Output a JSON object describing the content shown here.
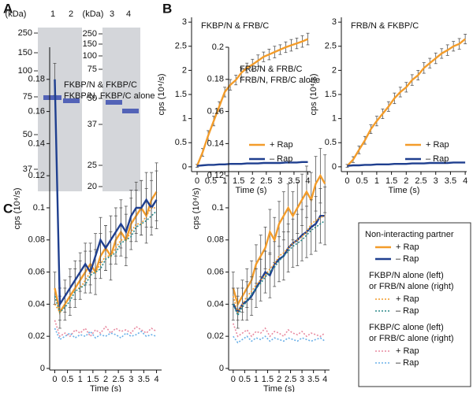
{
  "panel_labels": [
    "A",
    "B",
    "C"
  ],
  "gels": [
    {
      "unit": "(kDa)",
      "lanes": [
        "1",
        "2"
      ],
      "ticks": [
        "250",
        "150",
        "100",
        "75",
        "50",
        "37"
      ]
    },
    {
      "unit": "(kDa)",
      "lanes": [
        "3",
        "4"
      ],
      "ticks": [
        "250",
        "150",
        "100",
        "75",
        "50",
        "37",
        "25",
        "20"
      ]
    }
  ],
  "chart_data": [
    {
      "type": "line",
      "annotations": [
        "FKBP/N & FRB/C"
      ],
      "y_label": "cps (10⁴/s)",
      "x_label": "Time (s)",
      "legend": "lower right",
      "x": [
        0,
        0.2,
        0.4,
        0.6,
        0.8,
        1,
        1.2,
        1.4,
        1.6,
        1.8,
        2,
        2.2,
        2.4,
        2.6,
        2.8,
        3,
        3.2,
        3.4,
        3.6,
        3.8,
        4
      ],
      "xlim": [
        -0.2,
        4.1
      ],
      "xticks": [
        0,
        0.5,
        1,
        1.5,
        2,
        2.5,
        3,
        3.5,
        4
      ],
      "ylim": [
        -0.1,
        3.1
      ],
      "yticks": [
        0,
        0.5,
        1,
        1.5,
        2,
        2.5,
        3
      ],
      "series": [
        {
          "name": "+ Rap",
          "color": "#f39c2a",
          "style": "solid",
          "values": [
            0.02,
            0.3,
            0.65,
            0.95,
            1.25,
            1.55,
            1.7,
            1.8,
            1.95,
            2.05,
            2.12,
            2.2,
            2.28,
            2.33,
            2.38,
            2.43,
            2.48,
            2.52,
            2.56,
            2.6,
            2.65
          ],
          "errors": [
            0.03,
            0.08,
            0.1,
            0.1,
            0.1,
            0.1,
            0.11,
            0.1,
            0.11,
            0.1,
            0.11,
            0.12,
            0.1,
            0.11,
            0.12,
            0.1,
            0.11,
            0.12,
            0.11,
            0.12,
            0.12
          ]
        },
        {
          "name": "– Rap",
          "color": "#1f3f8f",
          "style": "solid",
          "values": [
            0.02,
            0.03,
            0.04,
            0.04,
            0.05,
            0.05,
            0.06,
            0.06,
            0.06,
            0.07,
            0.07,
            0.07,
            0.08,
            0.08,
            0.08,
            0.08,
            0.09,
            0.09,
            0.09,
            0.1,
            0.1
          ]
        }
      ]
    },
    {
      "type": "line",
      "annotations": [
        "FRB/N & FKBP/C"
      ],
      "y_label": "cps (10⁴/s)",
      "x_label": "Time (s)",
      "legend": "lower right",
      "x": [
        0,
        0.2,
        0.4,
        0.6,
        0.8,
        1,
        1.2,
        1.4,
        1.6,
        1.8,
        2,
        2.2,
        2.4,
        2.6,
        2.8,
        3,
        3.2,
        3.4,
        3.6,
        3.8,
        4
      ],
      "xlim": [
        -0.2,
        4.05
      ],
      "xticks": [
        0,
        0.5,
        1,
        1.5,
        2,
        2.5,
        3,
        3.5,
        4
      ],
      "ylim": [
        -0.1,
        3.1
      ],
      "yticks": [
        0,
        0.5,
        1,
        1.5,
        2,
        2.5,
        3
      ],
      "series": [
        {
          "name": "+ Rap",
          "color": "#f39c2a",
          "style": "solid",
          "values": [
            0.02,
            0.15,
            0.35,
            0.55,
            0.78,
            0.95,
            1.1,
            1.25,
            1.42,
            1.55,
            1.65,
            1.8,
            1.9,
            2.05,
            2.15,
            2.25,
            2.35,
            2.42,
            2.5,
            2.55,
            2.65
          ],
          "errors": [
            0.03,
            0.06,
            0.08,
            0.08,
            0.09,
            0.1,
            0.1,
            0.1,
            0.11,
            0.1,
            0.1,
            0.11,
            0.1,
            0.11,
            0.1,
            0.11,
            0.1,
            0.11,
            0.1,
            0.11,
            0.1
          ]
        },
        {
          "name": "– Rap",
          "color": "#1f3f8f",
          "style": "solid",
          "values": [
            0.02,
            0.03,
            0.03,
            0.04,
            0.04,
            0.05,
            0.05,
            0.05,
            0.06,
            0.06,
            0.06,
            0.07,
            0.07,
            0.07,
            0.08,
            0.08,
            0.08,
            0.08,
            0.09,
            0.09,
            0.09
          ]
        }
      ]
    },
    {
      "type": "line",
      "annotations": [
        "FKBP/N & FKBP/C",
        "FKBP/N, FKBP/C alone"
      ],
      "y_label": "cps (10⁴/s)",
      "x_label": "Time (s)",
      "legend": "outside right",
      "legend_groups": [
        [
          "Non-interacting partner"
        ],
        [
          "FKBP/N alone  (left)",
          "or FRB/N alone (right)"
        ],
        [
          "FKBP/C alone (left)",
          "or FRB/C alone (right)"
        ]
      ],
      "x": [
        0,
        0.2,
        0.4,
        0.6,
        0.8,
        1,
        1.2,
        1.4,
        1.6,
        1.8,
        2,
        2.2,
        2.4,
        2.6,
        2.8,
        3,
        3.2,
        3.4,
        3.6,
        3.8,
        4
      ],
      "xlim": [
        -0.2,
        4.2
      ],
      "xticks": [
        0,
        0.5,
        1,
        1.5,
        2,
        2.5,
        3,
        3.5,
        4
      ],
      "ylim": [
        -0.001,
        0.2
      ],
      "yticks": [
        0,
        0.02,
        0.04,
        0.06,
        0.08,
        0.1,
        0.12,
        0.14,
        0.16,
        0.18
      ],
      "series": [
        {
          "name": "+ Rap",
          "color": "#f39c2a",
          "style": "solid",
          "values": [
            0.05,
            0.035,
            0.04,
            0.045,
            0.05,
            0.055,
            0.06,
            0.065,
            0.06,
            0.07,
            0.075,
            0.07,
            0.08,
            0.085,
            0.08,
            0.09,
            0.095,
            0.1,
            0.095,
            0.105,
            0.11
          ],
          "errors": [
            0.01,
            0.01,
            0.01,
            0.012,
            0.012,
            0.012,
            0.013,
            0.013,
            0.014,
            0.014,
            0.014,
            0.015,
            0.015,
            0.015,
            0.016,
            0.016,
            0.016,
            0.017,
            0.017,
            0.017,
            0.018
          ]
        },
        {
          "name": "– Rap",
          "color": "#1f3f8f",
          "style": "solid",
          "values": [
            0.18,
            0.04,
            0.045,
            0.05,
            0.055,
            0.06,
            0.065,
            0.06,
            0.07,
            0.08,
            0.075,
            0.08,
            0.085,
            0.09,
            0.085,
            0.095,
            0.1,
            0.1,
            0.105,
            0.1,
            0.105
          ],
          "errors": [
            0.01,
            0.01,
            0.01,
            0.012,
            0.012,
            0.012,
            0.013,
            0.013,
            0.014,
            0.014,
            0.014,
            0.015,
            0.015,
            0.015,
            0.016,
            0.016,
            0.016,
            0.017,
            0.017,
            0.017,
            0.018
          ]
        },
        {
          "name": "+ Rap",
          "color": "#f39c2a",
          "style": "dotted",
          "values": [
            0.04,
            0.035,
            0.04,
            0.045,
            0.05,
            0.05,
            0.055,
            0.06,
            0.06,
            0.065,
            0.07,
            0.07,
            0.075,
            0.08,
            0.08,
            0.085,
            0.09,
            0.09,
            0.095,
            0.1,
            0.1
          ]
        },
        {
          "name": "– Rap",
          "color": "#2a8a8a",
          "style": "dotted",
          "values": [
            0.045,
            0.035,
            0.038,
            0.042,
            0.048,
            0.05,
            0.052,
            0.058,
            0.06,
            0.062,
            0.068,
            0.07,
            0.072,
            0.078,
            0.08,
            0.082,
            0.088,
            0.09,
            0.092,
            0.095,
            0.098
          ]
        },
        {
          "name": "+ Rap",
          "color": "#e88aa0",
          "style": "dotted",
          "values": [
            0.03,
            0.02,
            0.022,
            0.02,
            0.024,
            0.022,
            0.025,
            0.02,
            0.024,
            0.022,
            0.026,
            0.022,
            0.025,
            0.023,
            0.024,
            0.022,
            0.026,
            0.024,
            0.022,
            0.025,
            0.023
          ]
        },
        {
          "name": "– Rap",
          "color": "#6ab0e8",
          "style": "dotted",
          "values": [
            0.025,
            0.018,
            0.02,
            0.022,
            0.019,
            0.021,
            0.02,
            0.023,
            0.019,
            0.021,
            0.02,
            0.022,
            0.021,
            0.019,
            0.022,
            0.02,
            0.021,
            0.023,
            0.02,
            0.021,
            0.02
          ]
        }
      ]
    },
    {
      "type": "line",
      "annotations": [
        "FRB/N & FRB/C",
        "FRB/N, FRB/C alone"
      ],
      "y_label": "cps (10⁴/s)",
      "x_label": "Time (s)",
      "x": [
        0,
        0.2,
        0.4,
        0.6,
        0.8,
        1,
        1.2,
        1.4,
        1.6,
        1.8,
        2,
        2.2,
        2.4,
        2.6,
        2.8,
        3,
        3.2,
        3.4,
        3.6,
        3.8,
        4
      ],
      "xlim": [
        -0.2,
        4.2
      ],
      "xticks": [
        0,
        0.5,
        1,
        1.5,
        2,
        2.5,
        3,
        3.5,
        4
      ],
      "ylim": [
        -0.001,
        0.2
      ],
      "yticks": [
        0,
        0.02,
        0.04,
        0.06,
        0.08,
        0.1,
        0.12,
        0.14,
        0.16,
        0.18,
        0.2
      ],
      "series": [
        {
          "name": "+ Rap",
          "color": "#f39c2a",
          "style": "solid",
          "values": [
            0.05,
            0.04,
            0.045,
            0.05,
            0.055,
            0.065,
            0.07,
            0.075,
            0.085,
            0.08,
            0.09,
            0.095,
            0.1,
            0.095,
            0.1,
            0.105,
            0.11,
            0.105,
            0.115,
            0.12,
            0.115
          ],
          "errors": [
            0.01,
            0.01,
            0.01,
            0.012,
            0.012,
            0.012,
            0.013,
            0.013,
            0.014,
            0.014,
            0.014,
            0.015,
            0.015,
            0.015,
            0.016,
            0.016,
            0.016,
            0.017,
            0.017,
            0.017,
            0.018
          ]
        },
        {
          "name": "– Rap",
          "color": "#1f3f8f",
          "style": "solid",
          "values": [
            0.04,
            0.035,
            0.04,
            0.042,
            0.045,
            0.05,
            0.055,
            0.06,
            0.058,
            0.065,
            0.068,
            0.07,
            0.075,
            0.078,
            0.08,
            0.083,
            0.085,
            0.088,
            0.09,
            0.095,
            0.095
          ],
          "errors": [
            0.01,
            0.01,
            0.01,
            0.012,
            0.012,
            0.012,
            0.013,
            0.013,
            0.014,
            0.014,
            0.014,
            0.015,
            0.015,
            0.015,
            0.016,
            0.016,
            0.016,
            0.017,
            0.017,
            0.017,
            0.018
          ]
        },
        {
          "name": "+ Rap",
          "color": "#f39c2a",
          "style": "dotted",
          "values": [
            0.045,
            0.035,
            0.04,
            0.045,
            0.048,
            0.052,
            0.055,
            0.058,
            0.062,
            0.065,
            0.07,
            0.072,
            0.075,
            0.078,
            0.08,
            0.082,
            0.085,
            0.09,
            0.092,
            0.094,
            0.095
          ]
        },
        {
          "name": "– Rap",
          "color": "#2a8a8a",
          "style": "dotted",
          "values": [
            0.04,
            0.033,
            0.038,
            0.042,
            0.046,
            0.05,
            0.053,
            0.057,
            0.06,
            0.063,
            0.067,
            0.07,
            0.073,
            0.076,
            0.078,
            0.08,
            0.083,
            0.086,
            0.088,
            0.09,
            0.092
          ]
        },
        {
          "name": "+ Rap",
          "color": "#e88aa0",
          "style": "dotted",
          "values": [
            0.028,
            0.02,
            0.022,
            0.024,
            0.02,
            0.023,
            0.022,
            0.025,
            0.02,
            0.023,
            0.022,
            0.02,
            0.024,
            0.022,
            0.021,
            0.023,
            0.02,
            0.022,
            0.021,
            0.02,
            0.022
          ]
        },
        {
          "name": "– Rap",
          "color": "#6ab0e8",
          "style": "dotted",
          "values": [
            0.02,
            0.016,
            0.018,
            0.02,
            0.017,
            0.019,
            0.018,
            0.02,
            0.017,
            0.019,
            0.018,
            0.017,
            0.019,
            0.018,
            0.017,
            0.019,
            0.018,
            0.017,
            0.018,
            0.019,
            0.017
          ]
        }
      ]
    }
  ]
}
